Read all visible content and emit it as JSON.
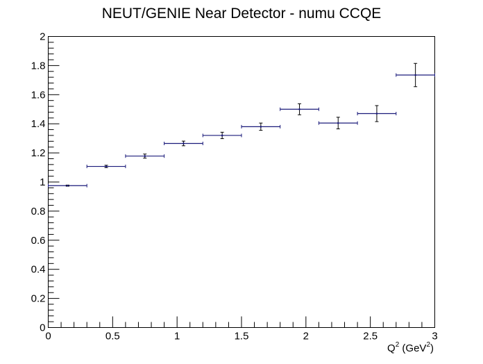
{
  "chart_data": {
    "type": "scatter",
    "title": "NEUT/GENIE Near Detector - numu CCQE",
    "xlabel": "Q",
    "xlabel_sup": "2",
    "xlabel_unit": " (GeV",
    "xlabel_unit_sup": "2",
    "xlabel_close": ")",
    "ylabel": "",
    "xlim": [
      0,
      3
    ],
    "ylim": [
      0,
      2
    ],
    "x_ticks": [
      0,
      0.5,
      1,
      1.5,
      2,
      2.5,
      3
    ],
    "x_tick_labels": [
      "0",
      "0.5",
      "1",
      "1.5",
      "2",
      "2.5",
      "3"
    ],
    "y_ticks": [
      0,
      0.2,
      0.4,
      0.6,
      0.8,
      1,
      1.2,
      1.4,
      1.6,
      1.8,
      2
    ],
    "y_tick_labels": [
      "0",
      "0.2",
      "0.4",
      "0.6",
      "0.8",
      "1",
      "1.2",
      "1.4",
      "1.6",
      "1.8",
      "2"
    ],
    "grid": false,
    "marker_color": "#1a1a7a",
    "series": [
      {
        "x": [
          0.15,
          0.45,
          0.75,
          1.05,
          1.35,
          1.65,
          1.95,
          2.25,
          2.55,
          2.85
        ],
        "x_err": [
          0.15,
          0.15,
          0.15,
          0.15,
          0.15,
          0.15,
          0.15,
          0.15,
          0.15,
          0.15
        ],
        "y": [
          0.975,
          1.107,
          1.178,
          1.265,
          1.32,
          1.38,
          1.5,
          1.405,
          1.47,
          1.735
        ],
        "y_err": [
          0.004,
          0.008,
          0.014,
          0.016,
          0.022,
          0.025,
          0.038,
          0.04,
          0.055,
          0.08
        ]
      }
    ]
  }
}
